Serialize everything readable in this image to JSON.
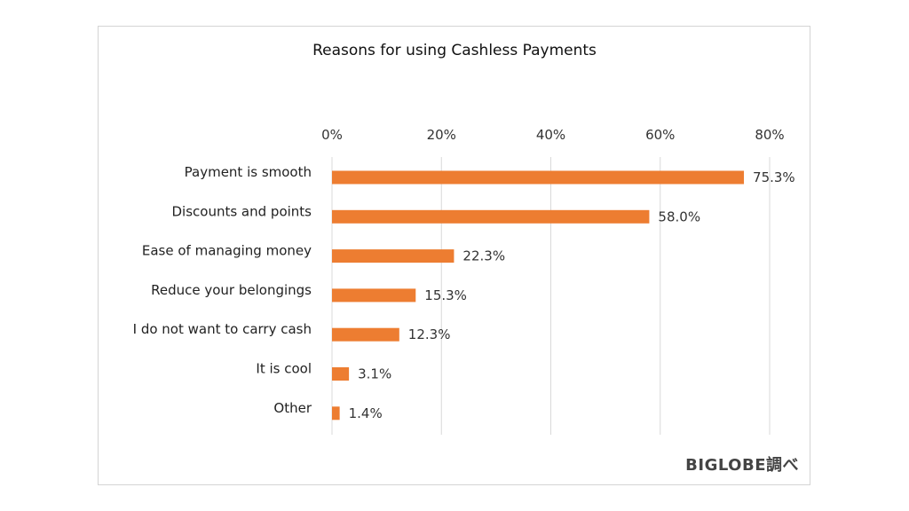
{
  "source_credit": "BIGLOBE調べ",
  "colors": {
    "bar": "#ED7D31",
    "grid": "#d9d9d9",
    "frame": "#d4d4d4"
  },
  "chart_data": {
    "type": "bar",
    "orientation": "horizontal",
    "title": "Reasons for using Cashless Payments",
    "categories": [
      "Payment is smooth",
      "Discounts and points",
      "Ease of managing money",
      "Reduce your belongings",
      "I do not want to carry cash",
      "It is cool",
      "Other"
    ],
    "values": [
      75.3,
      58.0,
      22.3,
      15.3,
      12.3,
      3.1,
      1.4
    ],
    "value_labels": [
      "75.3%",
      "58.0%",
      "22.3%",
      "15.3%",
      "12.3%",
      "3.1%",
      "1.4%"
    ],
    "xlim": [
      0,
      80
    ],
    "x_ticks": [
      0,
      20,
      40,
      60,
      80
    ],
    "x_tick_labels": [
      "0%",
      "20%",
      "40%",
      "60%",
      "80%"
    ],
    "x_axis_position": "top",
    "grid": true,
    "legend": "none"
  }
}
